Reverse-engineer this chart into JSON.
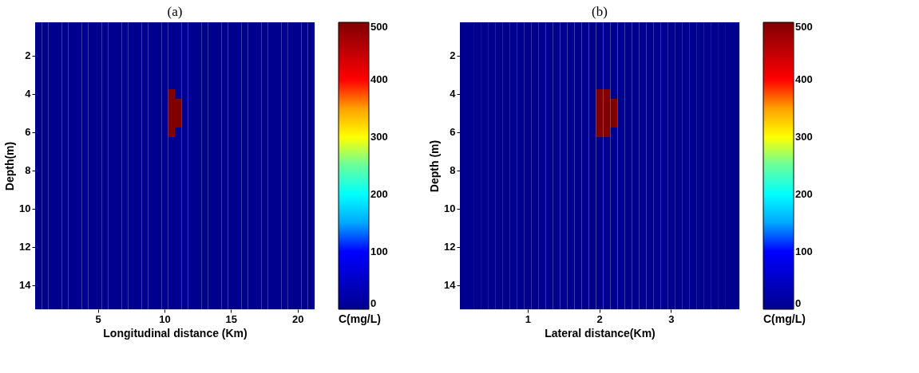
{
  "chart_data": [
    {
      "type": "heatmap",
      "title": "(a)",
      "xlabel": "Longitudinal distance (Km)",
      "ylabel": "Depth(m)",
      "clabel": "C(mg/L)",
      "categories": [
        null,
        null,
        null,
        null,
        null,
        null,
        null,
        null,
        null,
        "5",
        null,
        null,
        null,
        null,
        null,
        null,
        null,
        null,
        null,
        "10",
        null,
        null,
        null,
        null,
        null,
        null,
        null,
        null,
        null,
        "15",
        null,
        null,
        null,
        null,
        null,
        null,
        null,
        null,
        null,
        "20",
        null,
        null
      ],
      "y_categories": [
        null,
        null,
        null,
        "2",
        null,
        null,
        null,
        "4",
        null,
        null,
        null,
        "6",
        null,
        null,
        null,
        "8",
        null,
        null,
        null,
        "10",
        null,
        null,
        null,
        "12",
        null,
        null,
        null,
        "14",
        null,
        null
      ],
      "cells": [
        [
          0,
          0,
          0,
          0,
          0,
          0,
          0,
          0,
          0,
          0,
          0,
          0,
          0,
          0,
          0,
          0,
          0,
          0,
          0,
          0,
          0,
          0,
          0,
          0,
          0,
          0,
          0,
          0,
          0,
          0,
          0,
          0,
          0,
          0,
          0,
          0,
          0,
          0,
          0,
          0,
          0,
          0
        ],
        [
          0,
          0,
          0,
          0,
          0,
          0,
          0,
          0,
          0,
          0,
          0,
          0,
          0,
          0,
          0,
          0,
          0,
          0,
          0,
          0,
          0,
          0,
          0,
          0,
          0,
          0,
          0,
          0,
          0,
          0,
          0,
          0,
          0,
          0,
          0,
          0,
          0,
          0,
          0,
          0,
          0,
          0
        ],
        [
          0,
          0,
          0,
          0,
          0,
          0,
          0,
          0,
          0,
          0,
          0,
          0,
          0,
          0,
          0,
          0,
          0,
          0,
          0,
          0,
          0,
          0,
          0,
          0,
          0,
          0,
          0,
          0,
          0,
          0,
          0,
          0,
          0,
          0,
          0,
          0,
          0,
          0,
          0,
          0,
          0,
          0
        ],
        [
          0,
          0,
          0,
          0,
          0,
          0,
          0,
          0,
          0,
          0,
          0,
          0,
          0,
          0,
          0,
          0,
          0,
          0,
          0,
          0,
          0,
          0,
          0,
          0,
          0,
          0,
          0,
          0,
          0,
          0,
          0,
          0,
          0,
          0,
          0,
          0,
          0,
          0,
          0,
          0,
          0,
          0
        ],
        [
          0,
          0,
          0,
          0,
          0,
          0,
          0,
          0,
          0,
          0,
          0,
          0,
          0,
          0,
          0,
          0,
          0,
          0,
          0,
          0,
          0,
          0,
          0,
          0,
          0,
          0,
          0,
          0,
          0,
          0,
          0,
          0,
          0,
          0,
          0,
          0,
          0,
          0,
          0,
          0,
          0,
          0
        ],
        [
          0,
          0,
          0,
          0,
          0,
          0,
          0,
          0,
          0,
          0,
          0,
          0,
          0,
          0,
          0,
          0,
          0,
          0,
          0,
          0,
          0,
          0,
          0,
          0,
          0,
          0,
          0,
          0,
          0,
          0,
          0,
          0,
          0,
          0,
          0,
          0,
          0,
          0,
          0,
          0,
          0,
          0
        ],
        [
          0,
          0,
          0,
          0,
          0,
          0,
          0,
          0,
          0,
          0,
          0,
          0,
          0,
          0,
          0,
          0,
          0,
          0,
          0,
          0,
          0,
          0,
          0,
          0,
          0,
          0,
          0,
          0,
          0,
          0,
          0,
          0,
          0,
          0,
          0,
          0,
          0,
          0,
          0,
          0,
          0,
          0
        ],
        [
          0,
          0,
          0,
          0,
          0,
          0,
          0,
          0,
          0,
          0,
          0,
          0,
          0,
          0,
          0,
          0,
          0,
          0,
          0,
          0,
          500,
          0,
          0,
          0,
          0,
          0,
          0,
          0,
          0,
          0,
          0,
          0,
          0,
          0,
          0,
          0,
          0,
          0,
          0,
          0,
          0,
          0
        ],
        [
          0,
          0,
          0,
          0,
          0,
          0,
          0,
          0,
          0,
          0,
          0,
          0,
          0,
          0,
          0,
          0,
          0,
          0,
          0,
          0,
          500,
          500,
          0,
          0,
          0,
          0,
          0,
          0,
          0,
          0,
          0,
          0,
          0,
          0,
          0,
          0,
          0,
          0,
          0,
          0,
          0,
          0
        ],
        [
          0,
          0,
          0,
          0,
          0,
          0,
          0,
          0,
          0,
          0,
          0,
          0,
          0,
          0,
          0,
          0,
          0,
          0,
          0,
          0,
          500,
          500,
          0,
          0,
          0,
          0,
          0,
          0,
          0,
          0,
          0,
          0,
          0,
          0,
          0,
          0,
          0,
          0,
          0,
          0,
          0,
          0
        ],
        [
          0,
          0,
          0,
          0,
          0,
          0,
          0,
          0,
          0,
          0,
          0,
          0,
          0,
          0,
          0,
          0,
          0,
          0,
          0,
          0,
          500,
          500,
          0,
          0,
          0,
          0,
          0,
          0,
          0,
          0,
          0,
          0,
          0,
          0,
          0,
          0,
          0,
          0,
          0,
          0,
          0,
          0
        ],
        [
          0,
          0,
          0,
          0,
          0,
          0,
          0,
          0,
          0,
          0,
          0,
          0,
          0,
          0,
          0,
          0,
          0,
          0,
          0,
          0,
          500,
          0,
          0,
          0,
          0,
          0,
          0,
          0,
          0,
          0,
          0,
          0,
          0,
          0,
          0,
          0,
          0,
          0,
          0,
          0,
          0,
          0
        ],
        [
          0,
          0,
          0,
          0,
          0,
          0,
          0,
          0,
          0,
          0,
          0,
          0,
          0,
          0,
          0,
          0,
          0,
          0,
          0,
          0,
          0,
          0,
          0,
          0,
          0,
          0,
          0,
          0,
          0,
          0,
          0,
          0,
          0,
          0,
          0,
          0,
          0,
          0,
          0,
          0,
          0,
          0
        ],
        [
          0,
          0,
          0,
          0,
          0,
          0,
          0,
          0,
          0,
          0,
          0,
          0,
          0,
          0,
          0,
          0,
          0,
          0,
          0,
          0,
          0,
          0,
          0,
          0,
          0,
          0,
          0,
          0,
          0,
          0,
          0,
          0,
          0,
          0,
          0,
          0,
          0,
          0,
          0,
          0,
          0,
          0
        ],
        [
          0,
          0,
          0,
          0,
          0,
          0,
          0,
          0,
          0,
          0,
          0,
          0,
          0,
          0,
          0,
          0,
          0,
          0,
          0,
          0,
          0,
          0,
          0,
          0,
          0,
          0,
          0,
          0,
          0,
          0,
          0,
          0,
          0,
          0,
          0,
          0,
          0,
          0,
          0,
          0,
          0,
          0
        ],
        [
          0,
          0,
          0,
          0,
          0,
          0,
          0,
          0,
          0,
          0,
          0,
          0,
          0,
          0,
          0,
          0,
          0,
          0,
          0,
          0,
          0,
          0,
          0,
          0,
          0,
          0,
          0,
          0,
          0,
          0,
          0,
          0,
          0,
          0,
          0,
          0,
          0,
          0,
          0,
          0,
          0,
          0
        ],
        [
          0,
          0,
          0,
          0,
          0,
          0,
          0,
          0,
          0,
          0,
          0,
          0,
          0,
          0,
          0,
          0,
          0,
          0,
          0,
          0,
          0,
          0,
          0,
          0,
          0,
          0,
          0,
          0,
          0,
          0,
          0,
          0,
          0,
          0,
          0,
          0,
          0,
          0,
          0,
          0,
          0,
          0
        ],
        [
          0,
          0,
          0,
          0,
          0,
          0,
          0,
          0,
          0,
          0,
          0,
          0,
          0,
          0,
          0,
          0,
          0,
          0,
          0,
          0,
          0,
          0,
          0,
          0,
          0,
          0,
          0,
          0,
          0,
          0,
          0,
          0,
          0,
          0,
          0,
          0,
          0,
          0,
          0,
          0,
          0,
          0
        ],
        [
          0,
          0,
          0,
          0,
          0,
          0,
          0,
          0,
          0,
          0,
          0,
          0,
          0,
          0,
          0,
          0,
          0,
          0,
          0,
          0,
          0,
          0,
          0,
          0,
          0,
          0,
          0,
          0,
          0,
          0,
          0,
          0,
          0,
          0,
          0,
          0,
          0,
          0,
          0,
          0,
          0,
          0
        ],
        [
          0,
          0,
          0,
          0,
          0,
          0,
          0,
          0,
          0,
          0,
          0,
          0,
          0,
          0,
          0,
          0,
          0,
          0,
          0,
          0,
          0,
          0,
          0,
          0,
          0,
          0,
          0,
          0,
          0,
          0,
          0,
          0,
          0,
          0,
          0,
          0,
          0,
          0,
          0,
          0,
          0,
          0
        ],
        [
          0,
          0,
          0,
          0,
          0,
          0,
          0,
          0,
          0,
          0,
          0,
          0,
          0,
          0,
          0,
          0,
          0,
          0,
          0,
          0,
          0,
          0,
          0,
          0,
          0,
          0,
          0,
          0,
          0,
          0,
          0,
          0,
          0,
          0,
          0,
          0,
          0,
          0,
          0,
          0,
          0,
          0
        ],
        [
          0,
          0,
          0,
          0,
          0,
          0,
          0,
          0,
          0,
          0,
          0,
          0,
          0,
          0,
          0,
          0,
          0,
          0,
          0,
          0,
          0,
          0,
          0,
          0,
          0,
          0,
          0,
          0,
          0,
          0,
          0,
          0,
          0,
          0,
          0,
          0,
          0,
          0,
          0,
          0,
          0,
          0
        ],
        [
          0,
          0,
          0,
          0,
          0,
          0,
          0,
          0,
          0,
          0,
          0,
          0,
          0,
          0,
          0,
          0,
          0,
          0,
          0,
          0,
          0,
          0,
          0,
          0,
          0,
          0,
          0,
          0,
          0,
          0,
          0,
          0,
          0,
          0,
          0,
          0,
          0,
          0,
          0,
          0,
          0,
          0
        ],
        [
          0,
          0,
          0,
          0,
          0,
          0,
          0,
          0,
          0,
          0,
          0,
          0,
          0,
          0,
          0,
          0,
          0,
          0,
          0,
          0,
          0,
          0,
          0,
          0,
          0,
          0,
          0,
          0,
          0,
          0,
          0,
          0,
          0,
          0,
          0,
          0,
          0,
          0,
          0,
          0,
          0,
          0
        ],
        [
          0,
          0,
          0,
          0,
          0,
          0,
          0,
          0,
          0,
          0,
          0,
          0,
          0,
          0,
          0,
          0,
          0,
          0,
          0,
          0,
          0,
          0,
          0,
          0,
          0,
          0,
          0,
          0,
          0,
          0,
          0,
          0,
          0,
          0,
          0,
          0,
          0,
          0,
          0,
          0,
          0,
          0
        ],
        [
          0,
          0,
          0,
          0,
          0,
          0,
          0,
          0,
          0,
          0,
          0,
          0,
          0,
          0,
          0,
          0,
          0,
          0,
          0,
          0,
          0,
          0,
          0,
          0,
          0,
          0,
          0,
          0,
          0,
          0,
          0,
          0,
          0,
          0,
          0,
          0,
          0,
          0,
          0,
          0,
          0,
          0
        ],
        [
          0,
          0,
          0,
          0,
          0,
          0,
          0,
          0,
          0,
          0,
          0,
          0,
          0,
          0,
          0,
          0,
          0,
          0,
          0,
          0,
          0,
          0,
          0,
          0,
          0,
          0,
          0,
          0,
          0,
          0,
          0,
          0,
          0,
          0,
          0,
          0,
          0,
          0,
          0,
          0,
          0,
          0
        ],
        [
          0,
          0,
          0,
          0,
          0,
          0,
          0,
          0,
          0,
          0,
          0,
          0,
          0,
          0,
          0,
          0,
          0,
          0,
          0,
          0,
          0,
          0,
          0,
          0,
          0,
          0,
          0,
          0,
          0,
          0,
          0,
          0,
          0,
          0,
          0,
          0,
          0,
          0,
          0,
          0,
          0,
          0
        ],
        [
          0,
          0,
          0,
          0,
          0,
          0,
          0,
          0,
          0,
          0,
          0,
          0,
          0,
          0,
          0,
          0,
          0,
          0,
          0,
          0,
          0,
          0,
          0,
          0,
          0,
          0,
          0,
          0,
          0,
          0,
          0,
          0,
          0,
          0,
          0,
          0,
          0,
          0,
          0,
          0,
          0,
          0
        ],
        [
          0,
          0,
          0,
          0,
          0,
          0,
          0,
          0,
          0,
          0,
          0,
          0,
          0,
          0,
          0,
          0,
          0,
          0,
          0,
          0,
          0,
          0,
          0,
          0,
          0,
          0,
          0,
          0,
          0,
          0,
          0,
          0,
          0,
          0,
          0,
          0,
          0,
          0,
          0,
          0,
          0,
          0
        ]
      ],
      "clim": [
        0,
        500
      ],
      "cticks": [
        0,
        100,
        200,
        300,
        400,
        500
      ],
      "colors": [
        "#00008f",
        "#0000ff",
        "#00ffff",
        "#ffff00",
        "#ff0000",
        "#800000"
      ]
    },
    {
      "type": "heatmap",
      "title": "(b)",
      "xlabel": "Lateral distance(Km)",
      "ylabel": "Depth (m)",
      "clabel": "C(mg/L)",
      "categories": [
        null,
        null,
        null,
        null,
        null,
        null,
        null,
        null,
        null,
        "1",
        null,
        null,
        null,
        null,
        null,
        null,
        null,
        null,
        null,
        "2",
        null,
        null,
        null,
        null,
        null,
        null,
        null,
        null,
        null,
        "3",
        null,
        null,
        null,
        null,
        null,
        null,
        null,
        null,
        null
      ],
      "y_categories": [
        null,
        null,
        null,
        "2",
        null,
        null,
        null,
        "4",
        null,
        null,
        null,
        "6",
        null,
        null,
        null,
        "8",
        null,
        null,
        null,
        "10",
        null,
        null,
        null,
        "12",
        null,
        null,
        null,
        "14",
        null,
        null
      ],
      "cells": [
        [
          0,
          0,
          0,
          0,
          0,
          0,
          0,
          0,
          0,
          0,
          0,
          0,
          0,
          0,
          0,
          0,
          0,
          0,
          0,
          0,
          0,
          0,
          0,
          0,
          0,
          0,
          0,
          0,
          0,
          0,
          0,
          0,
          0,
          0,
          0,
          0,
          0,
          0,
          0
        ],
        [
          0,
          0,
          0,
          0,
          0,
          0,
          0,
          0,
          0,
          0,
          0,
          0,
          0,
          0,
          0,
          0,
          0,
          0,
          0,
          0,
          0,
          0,
          0,
          0,
          0,
          0,
          0,
          0,
          0,
          0,
          0,
          0,
          0,
          0,
          0,
          0,
          0,
          0,
          0
        ],
        [
          0,
          0,
          0,
          0,
          0,
          0,
          0,
          0,
          0,
          0,
          0,
          0,
          0,
          0,
          0,
          0,
          0,
          0,
          0,
          0,
          0,
          0,
          0,
          0,
          0,
          0,
          0,
          0,
          0,
          0,
          0,
          0,
          0,
          0,
          0,
          0,
          0,
          0,
          0
        ],
        [
          0,
          0,
          0,
          0,
          0,
          0,
          0,
          0,
          0,
          0,
          0,
          0,
          0,
          0,
          0,
          0,
          0,
          0,
          0,
          0,
          0,
          0,
          0,
          0,
          0,
          0,
          0,
          0,
          0,
          0,
          0,
          0,
          0,
          0,
          0,
          0,
          0,
          0,
          0
        ],
        [
          0,
          0,
          0,
          0,
          0,
          0,
          0,
          0,
          0,
          0,
          0,
          0,
          0,
          0,
          0,
          0,
          0,
          0,
          0,
          0,
          0,
          0,
          0,
          0,
          0,
          0,
          0,
          0,
          0,
          0,
          0,
          0,
          0,
          0,
          0,
          0,
          0,
          0,
          0
        ],
        [
          0,
          0,
          0,
          0,
          0,
          0,
          0,
          0,
          0,
          0,
          0,
          0,
          0,
          0,
          0,
          0,
          0,
          0,
          0,
          0,
          0,
          0,
          0,
          0,
          0,
          0,
          0,
          0,
          0,
          0,
          0,
          0,
          0,
          0,
          0,
          0,
          0,
          0,
          0
        ],
        [
          0,
          0,
          0,
          0,
          0,
          0,
          0,
          0,
          0,
          0,
          0,
          0,
          0,
          0,
          0,
          0,
          0,
          0,
          0,
          0,
          0,
          0,
          0,
          0,
          0,
          0,
          0,
          0,
          0,
          0,
          0,
          0,
          0,
          0,
          0,
          0,
          0,
          0,
          0
        ],
        [
          0,
          0,
          0,
          0,
          0,
          0,
          0,
          0,
          0,
          0,
          0,
          0,
          0,
          0,
          0,
          0,
          0,
          0,
          0,
          500,
          500,
          0,
          0,
          0,
          0,
          0,
          0,
          0,
          0,
          0,
          0,
          0,
          0,
          0,
          0,
          0,
          0,
          0,
          0
        ],
        [
          0,
          0,
          0,
          0,
          0,
          0,
          0,
          0,
          0,
          0,
          0,
          0,
          0,
          0,
          0,
          0,
          0,
          0,
          0,
          500,
          500,
          500,
          0,
          0,
          0,
          0,
          0,
          0,
          0,
          0,
          0,
          0,
          0,
          0,
          0,
          0,
          0,
          0,
          0
        ],
        [
          0,
          0,
          0,
          0,
          0,
          0,
          0,
          0,
          0,
          0,
          0,
          0,
          0,
          0,
          0,
          0,
          0,
          0,
          0,
          500,
          500,
          500,
          0,
          0,
          0,
          0,
          0,
          0,
          0,
          0,
          0,
          0,
          0,
          0,
          0,
          0,
          0,
          0,
          0
        ],
        [
          0,
          0,
          0,
          0,
          0,
          0,
          0,
          0,
          0,
          0,
          0,
          0,
          0,
          0,
          0,
          0,
          0,
          0,
          0,
          500,
          500,
          500,
          0,
          0,
          0,
          0,
          0,
          0,
          0,
          0,
          0,
          0,
          0,
          0,
          0,
          0,
          0,
          0,
          0
        ],
        [
          0,
          0,
          0,
          0,
          0,
          0,
          0,
          0,
          0,
          0,
          0,
          0,
          0,
          0,
          0,
          0,
          0,
          0,
          0,
          500,
          500,
          0,
          0,
          0,
          0,
          0,
          0,
          0,
          0,
          0,
          0,
          0,
          0,
          0,
          0,
          0,
          0,
          0,
          0
        ],
        [
          0,
          0,
          0,
          0,
          0,
          0,
          0,
          0,
          0,
          0,
          0,
          0,
          0,
          0,
          0,
          0,
          0,
          0,
          0,
          0,
          0,
          0,
          0,
          0,
          0,
          0,
          0,
          0,
          0,
          0,
          0,
          0,
          0,
          0,
          0,
          0,
          0,
          0,
          0
        ],
        [
          0,
          0,
          0,
          0,
          0,
          0,
          0,
          0,
          0,
          0,
          0,
          0,
          0,
          0,
          0,
          0,
          0,
          0,
          0,
          0,
          0,
          0,
          0,
          0,
          0,
          0,
          0,
          0,
          0,
          0,
          0,
          0,
          0,
          0,
          0,
          0,
          0,
          0,
          0
        ],
        [
          0,
          0,
          0,
          0,
          0,
          0,
          0,
          0,
          0,
          0,
          0,
          0,
          0,
          0,
          0,
          0,
          0,
          0,
          0,
          0,
          0,
          0,
          0,
          0,
          0,
          0,
          0,
          0,
          0,
          0,
          0,
          0,
          0,
          0,
          0,
          0,
          0,
          0,
          0
        ],
        [
          0,
          0,
          0,
          0,
          0,
          0,
          0,
          0,
          0,
          0,
          0,
          0,
          0,
          0,
          0,
          0,
          0,
          0,
          0,
          0,
          0,
          0,
          0,
          0,
          0,
          0,
          0,
          0,
          0,
          0,
          0,
          0,
          0,
          0,
          0,
          0,
          0,
          0,
          0
        ],
        [
          0,
          0,
          0,
          0,
          0,
          0,
          0,
          0,
          0,
          0,
          0,
          0,
          0,
          0,
          0,
          0,
          0,
          0,
          0,
          0,
          0,
          0,
          0,
          0,
          0,
          0,
          0,
          0,
          0,
          0,
          0,
          0,
          0,
          0,
          0,
          0,
          0,
          0,
          0
        ],
        [
          0,
          0,
          0,
          0,
          0,
          0,
          0,
          0,
          0,
          0,
          0,
          0,
          0,
          0,
          0,
          0,
          0,
          0,
          0,
          0,
          0,
          0,
          0,
          0,
          0,
          0,
          0,
          0,
          0,
          0,
          0,
          0,
          0,
          0,
          0,
          0,
          0,
          0,
          0
        ],
        [
          0,
          0,
          0,
          0,
          0,
          0,
          0,
          0,
          0,
          0,
          0,
          0,
          0,
          0,
          0,
          0,
          0,
          0,
          0,
          0,
          0,
          0,
          0,
          0,
          0,
          0,
          0,
          0,
          0,
          0,
          0,
          0,
          0,
          0,
          0,
          0,
          0,
          0,
          0
        ],
        [
          0,
          0,
          0,
          0,
          0,
          0,
          0,
          0,
          0,
          0,
          0,
          0,
          0,
          0,
          0,
          0,
          0,
          0,
          0,
          0,
          0,
          0,
          0,
          0,
          0,
          0,
          0,
          0,
          0,
          0,
          0,
          0,
          0,
          0,
          0,
          0,
          0,
          0,
          0
        ],
        [
          0,
          0,
          0,
          0,
          0,
          0,
          0,
          0,
          0,
          0,
          0,
          0,
          0,
          0,
          0,
          0,
          0,
          0,
          0,
          0,
          0,
          0,
          0,
          0,
          0,
          0,
          0,
          0,
          0,
          0,
          0,
          0,
          0,
          0,
          0,
          0,
          0,
          0,
          0
        ],
        [
          0,
          0,
          0,
          0,
          0,
          0,
          0,
          0,
          0,
          0,
          0,
          0,
          0,
          0,
          0,
          0,
          0,
          0,
          0,
          0,
          0,
          0,
          0,
          0,
          0,
          0,
          0,
          0,
          0,
          0,
          0,
          0,
          0,
          0,
          0,
          0,
          0,
          0,
          0
        ],
        [
          0,
          0,
          0,
          0,
          0,
          0,
          0,
          0,
          0,
          0,
          0,
          0,
          0,
          0,
          0,
          0,
          0,
          0,
          0,
          0,
          0,
          0,
          0,
          0,
          0,
          0,
          0,
          0,
          0,
          0,
          0,
          0,
          0,
          0,
          0,
          0,
          0,
          0,
          0
        ],
        [
          0,
          0,
          0,
          0,
          0,
          0,
          0,
          0,
          0,
          0,
          0,
          0,
          0,
          0,
          0,
          0,
          0,
          0,
          0,
          0,
          0,
          0,
          0,
          0,
          0,
          0,
          0,
          0,
          0,
          0,
          0,
          0,
          0,
          0,
          0,
          0,
          0,
          0,
          0
        ],
        [
          0,
          0,
          0,
          0,
          0,
          0,
          0,
          0,
          0,
          0,
          0,
          0,
          0,
          0,
          0,
          0,
          0,
          0,
          0,
          0,
          0,
          0,
          0,
          0,
          0,
          0,
          0,
          0,
          0,
          0,
          0,
          0,
          0,
          0,
          0,
          0,
          0,
          0,
          0
        ],
        [
          0,
          0,
          0,
          0,
          0,
          0,
          0,
          0,
          0,
          0,
          0,
          0,
          0,
          0,
          0,
          0,
          0,
          0,
          0,
          0,
          0,
          0,
          0,
          0,
          0,
          0,
          0,
          0,
          0,
          0,
          0,
          0,
          0,
          0,
          0,
          0,
          0,
          0,
          0
        ],
        [
          0,
          0,
          0,
          0,
          0,
          0,
          0,
          0,
          0,
          0,
          0,
          0,
          0,
          0,
          0,
          0,
          0,
          0,
          0,
          0,
          0,
          0,
          0,
          0,
          0,
          0,
          0,
          0,
          0,
          0,
          0,
          0,
          0,
          0,
          0,
          0,
          0,
          0,
          0
        ],
        [
          0,
          0,
          0,
          0,
          0,
          0,
          0,
          0,
          0,
          0,
          0,
          0,
          0,
          0,
          0,
          0,
          0,
          0,
          0,
          0,
          0,
          0,
          0,
          0,
          0,
          0,
          0,
          0,
          0,
          0,
          0,
          0,
          0,
          0,
          0,
          0,
          0,
          0,
          0
        ],
        [
          0,
          0,
          0,
          0,
          0,
          0,
          0,
          0,
          0,
          0,
          0,
          0,
          0,
          0,
          0,
          0,
          0,
          0,
          0,
          0,
          0,
          0,
          0,
          0,
          0,
          0,
          0,
          0,
          0,
          0,
          0,
          0,
          0,
          0,
          0,
          0,
          0,
          0,
          0
        ],
        [
          0,
          0,
          0,
          0,
          0,
          0,
          0,
          0,
          0,
          0,
          0,
          0,
          0,
          0,
          0,
          0,
          0,
          0,
          0,
          0,
          0,
          0,
          0,
          0,
          0,
          0,
          0,
          0,
          0,
          0,
          0,
          0,
          0,
          0,
          0,
          0,
          0,
          0,
          0
        ]
      ],
      "clim": [
        0,
        500
      ],
      "cticks": [
        0,
        100,
        200,
        300,
        400,
        500
      ],
      "colors": [
        "#00008f",
        "#0000ff",
        "#00ffff",
        "#ffff00",
        "#ff0000",
        "#800000"
      ]
    }
  ]
}
